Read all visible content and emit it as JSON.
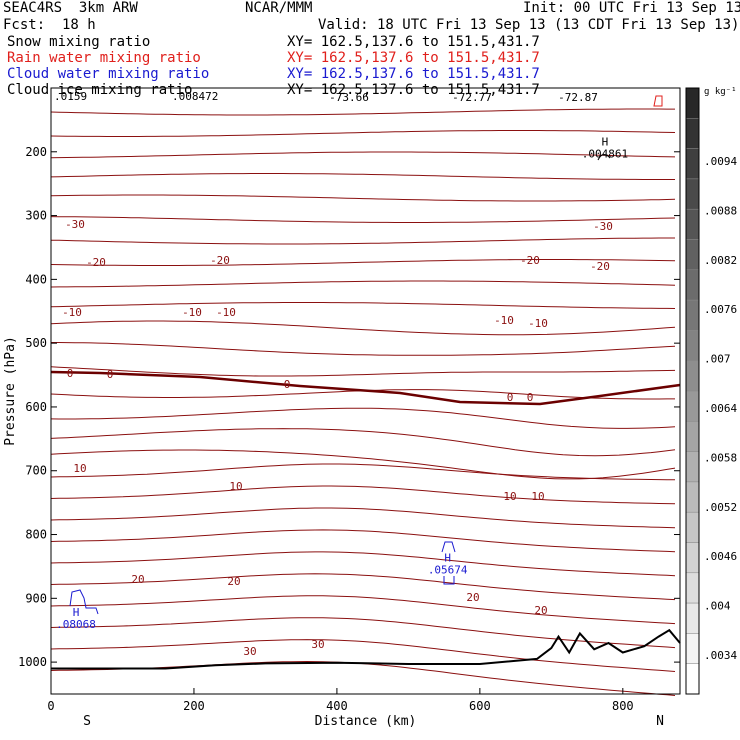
{
  "header": {
    "model": "SEAC4RS  3km ARW",
    "org": "NCAR/MMM",
    "init": "Init: 00 UTC Fri 13 Sep 13",
    "fcst": "Fcst:  18 h",
    "valid": "Valid: 18 UTC Fri 13 Sep 13 (13 CDT Fri 13 Sep 13)"
  },
  "fields": [
    {
      "name": "Snow mixing ratio",
      "xy": "XY= 162.5,137.6 to 151.5,431.7",
      "color": "#000000"
    },
    {
      "name": "Rain water mixing ratio",
      "xy": "XY= 162.5,137.6 to 151.5,431.7",
      "color": "#e0201c"
    },
    {
      "name": "Cloud water mixing ratio",
      "xy": "XY= 162.5,137.6 to 151.5,431.7",
      "color": "#1a1ad0"
    },
    {
      "name": "Cloud ice mixing ratio",
      "xy": "XY= 162.5,137.6 to 151.5,431.7",
      "color": "#000000"
    }
  ],
  "chart_data": {
    "type": "line",
    "xlabel": "Distance (km)",
    "ylabel": "Pressure (hPa)",
    "xlim": [
      0,
      880
    ],
    "ylim": [
      100,
      1050
    ],
    "x_ticks": [
      0,
      200,
      400,
      600,
      800
    ],
    "y_ticks": [
      200,
      300,
      400,
      500,
      600,
      700,
      800,
      900,
      1000
    ],
    "x_endpoints": {
      "left": "S",
      "right": "N"
    },
    "contour_color": "#8b1010",
    "contour_label_values": [
      "-30",
      "-20",
      "-10",
      "0",
      "10",
      "20",
      "30"
    ],
    "top_labels": [
      "-73.66",
      "-72.77",
      "-72.87"
    ],
    "top_left_clutter": ".0159",
    "top_left_clutter2": ".008472",
    "highs": [
      {
        "label": "H",
        "value": ".004861",
        "x": 775,
        "p": 190,
        "color": "#000000"
      },
      {
        "label": "H",
        "value": ".05674",
        "x": 555,
        "p": 842,
        "color": "#1a1ad0"
      },
      {
        "label": "H",
        "value": ".08068",
        "x": 35,
        "p": 928,
        "color": "#1a1ad0"
      }
    ],
    "colorbar": {
      "unit": "g kg⁻¹",
      "labels": [
        ".0094",
        ".0088",
        ".0082",
        ".0076",
        ".007",
        ".0064",
        ".0058",
        ".0052",
        ".0046",
        ".004",
        ".0034"
      ]
    },
    "terrain": [
      [
        0,
        1010
      ],
      [
        160,
        1010
      ],
      [
        230,
        1005
      ],
      [
        300,
        1002
      ],
      [
        400,
        1001
      ],
      [
        500,
        1003
      ],
      [
        600,
        1003
      ],
      [
        680,
        995
      ],
      [
        700,
        978
      ],
      [
        710,
        960
      ],
      [
        725,
        985
      ],
      [
        740,
        955
      ],
      [
        760,
        980
      ],
      [
        780,
        970
      ],
      [
        800,
        985
      ],
      [
        830,
        975
      ],
      [
        850,
        960
      ],
      [
        865,
        950
      ],
      [
        880,
        970
      ]
    ]
  }
}
